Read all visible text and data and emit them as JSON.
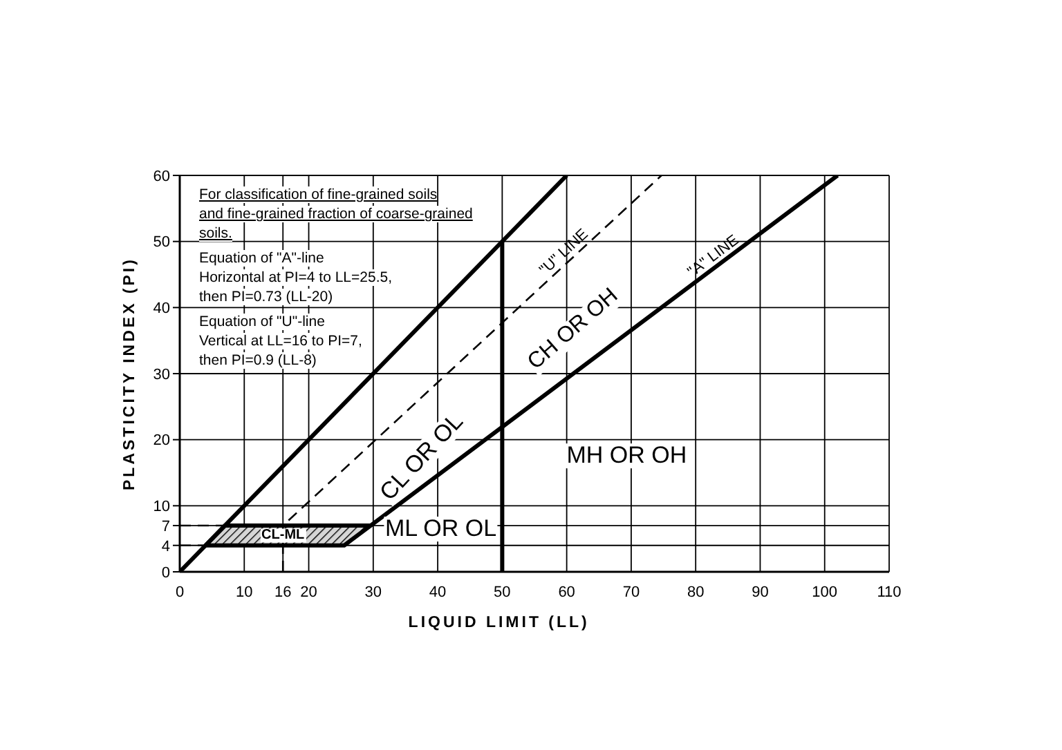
{
  "chart_data": {
    "type": "line",
    "title": "For classification of fine-grained soils\nand fine-grained fraction of coarse-grained\nsoils.",
    "xlabel": "LIQUID LIMIT (LL)",
    "ylabel": "PLASTICITY INDEX (PI)",
    "xlim": [
      0,
      110
    ],
    "xticks": [
      0,
      10,
      16,
      20,
      30,
      40,
      50,
      60,
      70,
      80,
      90,
      100,
      110
    ],
    "ylim": [
      0,
      60
    ],
    "yticks": [
      0,
      4,
      7,
      10,
      20,
      30,
      40,
      50,
      60
    ],
    "grid": true,
    "marker": "none",
    "line_style": "solid",
    "series": [
      {
        "color": "#000000",
        "x": [
          4,
          7,
          25.5,
          29.6
        ],
        "values": [
          4,
          7,
          7,
          7
        ],
        "lower": [
          4,
          4,
          4,
          7
        ],
        "upper": [
          4,
          7,
          7,
          7
        ]
      },
      {
        "color": "#000000",
        "x": [
          0,
          60
        ],
        "values": [
          0,
          60
        ]
      },
      {
        "color": "#000000",
        "x": [
          50,
          50
        ],
        "values": [
          0,
          50
        ]
      },
      {
        "color": "#000000",
        "x": [
          0,
          4
        ],
        "values": [
          4,
          4
        ],
        "line_style": "dashed"
      },
      {
        "color": "#000000",
        "x": [
          0,
          7
        ],
        "values": [
          7,
          7
        ],
        "line_style": "dashed"
      },
      {
        "name": "\"U\" LINE",
        "color": "#000000",
        "x": [
          16,
          16,
          74.7
        ],
        "values": [
          0,
          7,
          60
        ],
        "line_style": "dashed"
      },
      {
        "name": "\"A\" LINE",
        "color": "#000000",
        "x": [
          4,
          25.5,
          102
        ],
        "values": [
          4,
          4,
          60
        ]
      }
    ],
    "annotations": [
      "Equation of \"A\"-line\nHorizontal at PI=4 to LL=25.5,\nthen PI=0.73 (LL-20)",
      "Equation of \"U\"-line\nVertical at LL=16 to PI=7,\nthen PI=0.9 (LL-8)",
      {
        "text": "CL-ML",
        "x": 16,
        "y": 5.5
      },
      "ML OR OL",
      "CL OR OL",
      "CH OR OH",
      "MH OR OH"
    ]
  }
}
